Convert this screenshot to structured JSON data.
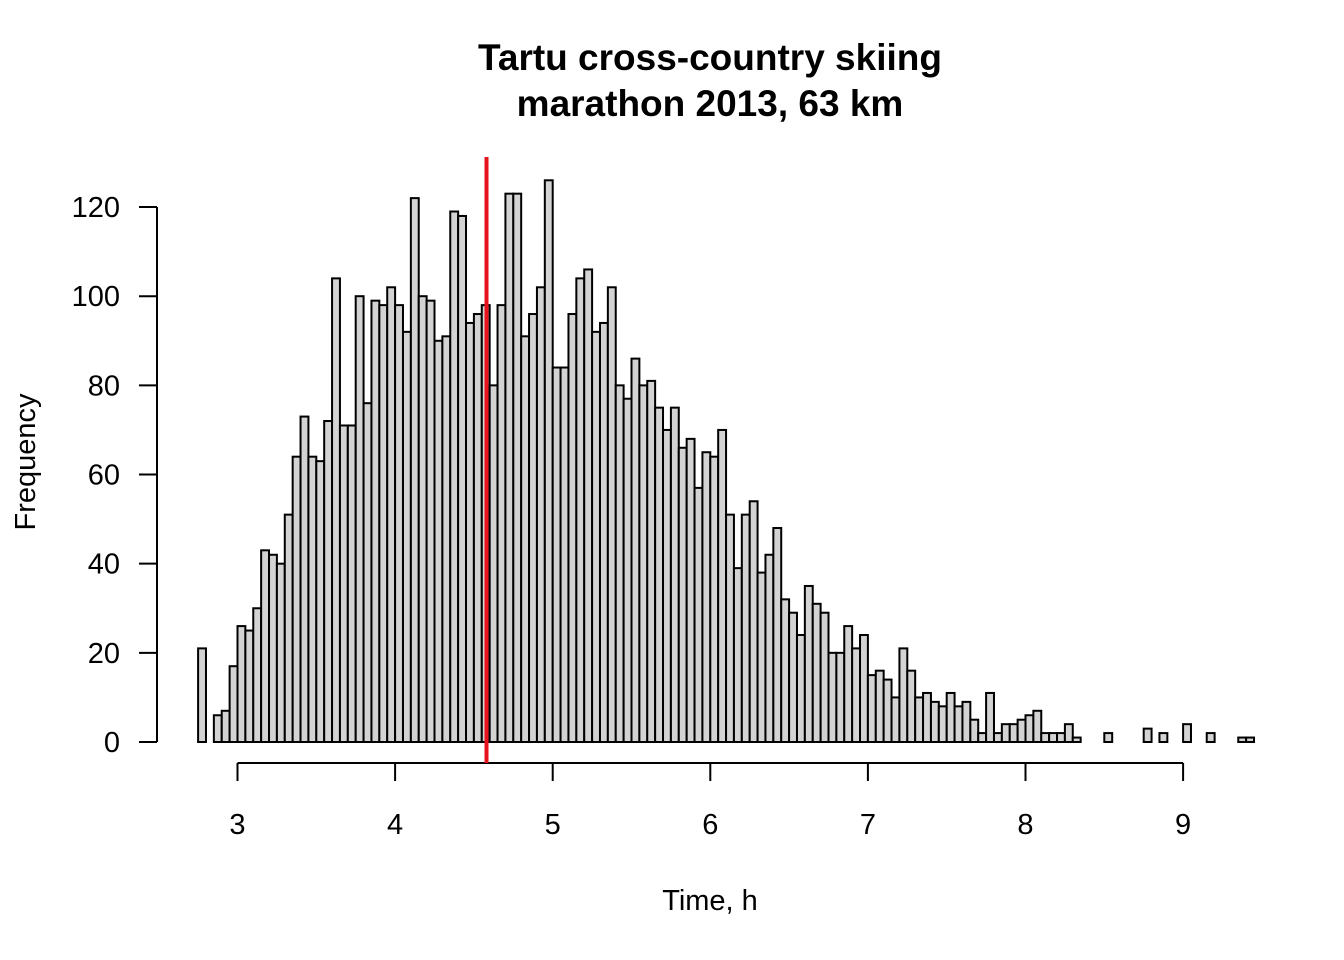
{
  "chart_data": {
    "type": "bar",
    "title_line1": "Tartu cross-country skiing",
    "title_line2": "marathon 2013, 63 km",
    "xlabel": "Time, h",
    "ylabel": "Frequency",
    "xlim": [
      2.75,
      9.25
    ],
    "ylim": [
      0,
      120
    ],
    "bin_start": 2.75,
    "bin_width": 0.05,
    "x_ticks": [
      3,
      4,
      5,
      6,
      7,
      8,
      9
    ],
    "y_ticks": [
      0,
      20,
      40,
      60,
      80,
      100,
      120
    ],
    "values": [
      21,
      0,
      6,
      7,
      17,
      26,
      25,
      30,
      43,
      42,
      40,
      51,
      64,
      73,
      64,
      63,
      72,
      104,
      71,
      71,
      100,
      76,
      99,
      98,
      102,
      98,
      92,
      122,
      100,
      99,
      90,
      91,
      119,
      118,
      94,
      96,
      98,
      80,
      98,
      123,
      123,
      91,
      96,
      102,
      126,
      84,
      84,
      96,
      104,
      106,
      92,
      94,
      102,
      80,
      77,
      86,
      80,
      81,
      75,
      70,
      75,
      66,
      68,
      57,
      65,
      64,
      70,
      51,
      39,
      51,
      54,
      38,
      42,
      48,
      32,
      29,
      24,
      35,
      31,
      29,
      20,
      20,
      26,
      21,
      24,
      15,
      16,
      14,
      10,
      21,
      16,
      10,
      11,
      9,
      8,
      11,
      8,
      9,
      5,
      2,
      11,
      2,
      4,
      4,
      5,
      6,
      7,
      2,
      2,
      2,
      4,
      1,
      0,
      0,
      0,
      2,
      0,
      0,
      0,
      0,
      3,
      0,
      2,
      0,
      0,
      4,
      0,
      0,
      2,
      0,
      0,
      0,
      1,
      1
    ],
    "mean_line_x": 4.58,
    "mean_line_color": "#e8121b",
    "bar_color": "#d3d3d3"
  }
}
